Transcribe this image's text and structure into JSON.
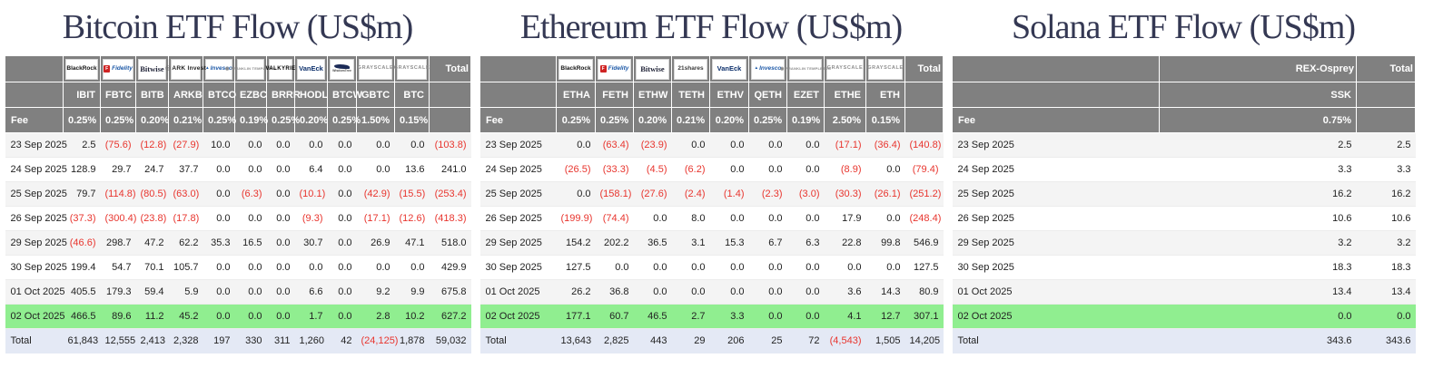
{
  "colors": {
    "header_bg": "#808080",
    "header_text": "#ffffff",
    "negative_value": "#e8352e",
    "highlight_row": "#90ee90",
    "total_row_bg": "#e4e9f5",
    "title_text": "#343853"
  },
  "chart_data": [
    {
      "type": "table",
      "title": "Bitcoin ETF Flow (US$m)",
      "fee_label": "Fee",
      "total_label": "Total",
      "issuers": [
        {
          "name": "BlackRock",
          "logo": "blackrock"
        },
        {
          "name": "Fidelity",
          "logo": "fidelity"
        },
        {
          "name": "Bitwise",
          "logo": "bitwise"
        },
        {
          "name": "ARK Invest",
          "logo": "ark"
        },
        {
          "name": "Invesco",
          "logo": "invesco"
        },
        {
          "name": "Franklin Templeton",
          "logo": "franklin"
        },
        {
          "name": "VALKYRIE",
          "logo": "valkyrie"
        },
        {
          "name": "VanEck",
          "logo": "vaneck"
        },
        {
          "name": "WisdomTree",
          "logo": "wisdomtree"
        },
        {
          "name": "GRAYSCALE",
          "logo": "grayscale"
        },
        {
          "name": "GRAYSCALE",
          "logo": "grayscale"
        }
      ],
      "tickers": [
        "IBIT",
        "FBTC",
        "BITB",
        "ARKB",
        "BTCO",
        "EZBC",
        "BRRR",
        "HODL",
        "BTCW",
        "GBTC",
        "BTC"
      ],
      "fees": [
        "0.25%",
        "0.25%",
        "0.20%",
        "0.21%",
        "0.25%",
        "0.19%",
        "0.25%",
        "0.20%",
        "0.25%",
        "1.50%",
        "0.15%"
      ],
      "rows": [
        {
          "date": "23 Sep 2025",
          "values": [
            "2.5",
            "(75.6)",
            "(12.8)",
            "(27.9)",
            "10.0",
            "0.0",
            "0.0",
            "0.0",
            "0.0",
            "0.0",
            "0.0"
          ],
          "total": "(103.8)",
          "highlight": false
        },
        {
          "date": "24 Sep 2025",
          "values": [
            "128.9",
            "29.7",
            "24.7",
            "37.7",
            "0.0",
            "0.0",
            "0.0",
            "6.4",
            "0.0",
            "0.0",
            "13.6"
          ],
          "total": "241.0",
          "highlight": false
        },
        {
          "date": "25 Sep 2025",
          "values": [
            "79.7",
            "(114.8)",
            "(80.5)",
            "(63.0)",
            "0.0",
            "(6.3)",
            "0.0",
            "(10.1)",
            "0.0",
            "(42.9)",
            "(15.5)"
          ],
          "total": "(253.4)",
          "highlight": false
        },
        {
          "date": "26 Sep 2025",
          "values": [
            "(37.3)",
            "(300.4)",
            "(23.8)",
            "(17.8)",
            "0.0",
            "0.0",
            "0.0",
            "(9.3)",
            "0.0",
            "(17.1)",
            "(12.6)"
          ],
          "total": "(418.3)",
          "highlight": false
        },
        {
          "date": "29 Sep 2025",
          "values": [
            "(46.6)",
            "298.7",
            "47.2",
            "62.2",
            "35.3",
            "16.5",
            "0.0",
            "30.7",
            "0.0",
            "26.9",
            "47.1"
          ],
          "total": "518.0",
          "highlight": false
        },
        {
          "date": "30 Sep 2025",
          "values": [
            "199.4",
            "54.7",
            "70.1",
            "105.7",
            "0.0",
            "0.0",
            "0.0",
            "0.0",
            "0.0",
            "0.0",
            "0.0"
          ],
          "total": "429.9",
          "highlight": false
        },
        {
          "date": "01 Oct 2025",
          "values": [
            "405.5",
            "179.3",
            "59.4",
            "5.9",
            "0.0",
            "0.0",
            "0.0",
            "6.6",
            "0.0",
            "9.2",
            "9.9"
          ],
          "total": "675.8",
          "highlight": false
        },
        {
          "date": "02 Oct 2025",
          "values": [
            "466.5",
            "89.6",
            "11.2",
            "45.2",
            "0.0",
            "0.0",
            "0.0",
            "1.7",
            "0.0",
            "2.8",
            "10.2"
          ],
          "total": "627.2",
          "highlight": true
        }
      ],
      "total_row": {
        "label": "Total",
        "values": [
          "61,843",
          "12,555",
          "2,413",
          "2,328",
          "197",
          "330",
          "311",
          "1,260",
          "42",
          "(24,125)",
          "1,878"
        ],
        "total": "59,032"
      }
    },
    {
      "type": "table",
      "title": "Ethereum ETF Flow (US$m)",
      "fee_label": "Fee",
      "total_label": "Total",
      "issuers": [
        {
          "name": "BlackRock",
          "logo": "blackrock"
        },
        {
          "name": "Fidelity",
          "logo": "fidelity"
        },
        {
          "name": "Bitwise",
          "logo": "bitwise"
        },
        {
          "name": "21shares",
          "logo": "21shares"
        },
        {
          "name": "VanEck",
          "logo": "vaneck"
        },
        {
          "name": "Invesco",
          "logo": "invesco"
        },
        {
          "name": "Franklin Templeton",
          "logo": "franklin"
        },
        {
          "name": "GRAYSCALE",
          "logo": "grayscale"
        },
        {
          "name": "GRAYSCALE",
          "logo": "grayscale"
        }
      ],
      "tickers": [
        "ETHA",
        "FETH",
        "ETHW",
        "TETH",
        "ETHV",
        "QETH",
        "EZET",
        "ETHE",
        "ETH"
      ],
      "fees": [
        "0.25%",
        "0.25%",
        "0.20%",
        "0.21%",
        "0.20%",
        "0.25%",
        "0.19%",
        "2.50%",
        "0.15%"
      ],
      "rows": [
        {
          "date": "23 Sep 2025",
          "values": [
            "0.0",
            "(63.4)",
            "(23.9)",
            "0.0",
            "0.0",
            "0.0",
            "0.0",
            "(17.1)",
            "(36.4)"
          ],
          "total": "(140.8)",
          "highlight": false
        },
        {
          "date": "24 Sep 2025",
          "values": [
            "(26.5)",
            "(33.3)",
            "(4.5)",
            "(6.2)",
            "0.0",
            "0.0",
            "0.0",
            "(8.9)",
            "0.0"
          ],
          "total": "(79.4)",
          "highlight": false
        },
        {
          "date": "25 Sep 2025",
          "values": [
            "0.0",
            "(158.1)",
            "(27.6)",
            "(2.4)",
            "(1.4)",
            "(2.3)",
            "(3.0)",
            "(30.3)",
            "(26.1)"
          ],
          "total": "(251.2)",
          "highlight": false
        },
        {
          "date": "26 Sep 2025",
          "values": [
            "(199.9)",
            "(74.4)",
            "0.0",
            "8.0",
            "0.0",
            "0.0",
            "0.0",
            "17.9",
            "0.0"
          ],
          "total": "(248.4)",
          "highlight": false
        },
        {
          "date": "29 Sep 2025",
          "values": [
            "154.2",
            "202.2",
            "36.5",
            "3.1",
            "15.3",
            "6.7",
            "6.3",
            "22.8",
            "99.8"
          ],
          "total": "546.9",
          "highlight": false
        },
        {
          "date": "30 Sep 2025",
          "values": [
            "127.5",
            "0.0",
            "0.0",
            "0.0",
            "0.0",
            "0.0",
            "0.0",
            "0.0",
            "0.0"
          ],
          "total": "127.5",
          "highlight": false
        },
        {
          "date": "01 Oct 2025",
          "values": [
            "26.2",
            "36.8",
            "0.0",
            "0.0",
            "0.0",
            "0.0",
            "0.0",
            "3.6",
            "14.3"
          ],
          "total": "80.9",
          "highlight": false
        },
        {
          "date": "02 Oct 2025",
          "values": [
            "177.1",
            "60.7",
            "46.5",
            "2.7",
            "3.3",
            "0.0",
            "0.0",
            "4.1",
            "12.7"
          ],
          "total": "307.1",
          "highlight": true
        }
      ],
      "total_row": {
        "label": "Total",
        "values": [
          "13,643",
          "2,825",
          "443",
          "29",
          "206",
          "25",
          "72",
          "(4,543)",
          "1,505"
        ],
        "total": "14,205"
      }
    },
    {
      "type": "table",
      "title": "Solana ETF Flow (US$m)",
      "fee_label": "Fee",
      "total_label": "Total",
      "issuers": [
        {
          "name": "REX-Osprey",
          "logo": "text"
        }
      ],
      "tickers": [
        "SSK"
      ],
      "fees": [
        "0.75%"
      ],
      "rows": [
        {
          "date": "23 Sep 2025",
          "values": [
            "2.5"
          ],
          "total": "2.5",
          "highlight": false
        },
        {
          "date": "24 Sep 2025",
          "values": [
            "3.3"
          ],
          "total": "3.3",
          "highlight": false
        },
        {
          "date": "25 Sep 2025",
          "values": [
            "16.2"
          ],
          "total": "16.2",
          "highlight": false
        },
        {
          "date": "26 Sep 2025",
          "values": [
            "10.6"
          ],
          "total": "10.6",
          "highlight": false
        },
        {
          "date": "29 Sep 2025",
          "values": [
            "3.2"
          ],
          "total": "3.2",
          "highlight": false
        },
        {
          "date": "30 Sep 2025",
          "values": [
            "18.3"
          ],
          "total": "18.3",
          "highlight": false
        },
        {
          "date": "01 Oct 2025",
          "values": [
            "13.4"
          ],
          "total": "13.4",
          "highlight": false
        },
        {
          "date": "02 Oct 2025",
          "values": [
            "0.0"
          ],
          "total": "0.0",
          "highlight": true
        }
      ],
      "total_row": {
        "label": "Total",
        "values": [
          "343.6"
        ],
        "total": "343.6"
      }
    }
  ]
}
